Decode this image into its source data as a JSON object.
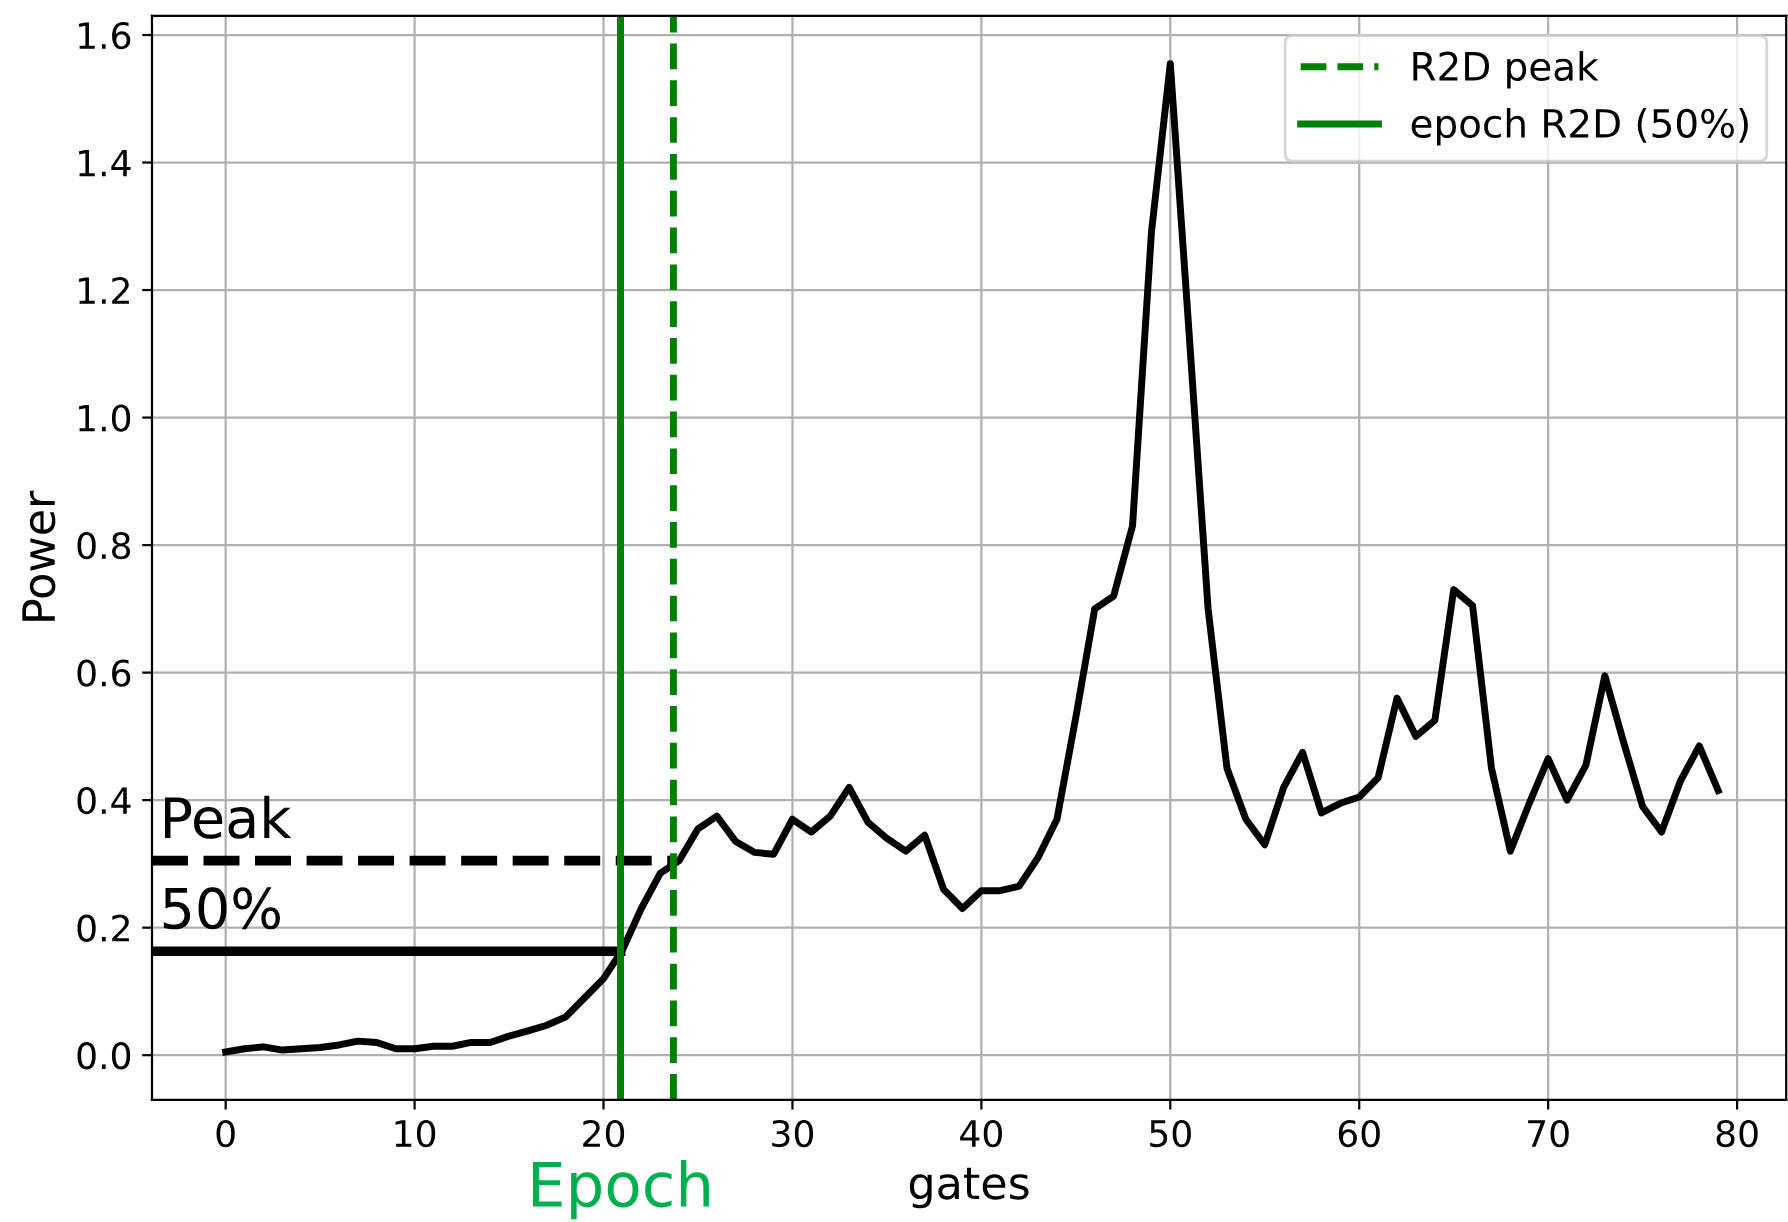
{
  "chart_data": {
    "type": "line",
    "xlabel": "gates",
    "ylabel": "Power",
    "xlim": [
      -3.9,
      82.6
    ],
    "ylim": [
      -0.07,
      1.63
    ],
    "xticks": [
      0,
      10,
      20,
      30,
      40,
      50,
      60,
      70,
      80
    ],
    "yticks": [
      {
        "value": 0,
        "label": "0.0"
      },
      {
        "value": 0.2,
        "label": "0.2"
      },
      {
        "value": 0.4,
        "label": "0.4"
      },
      {
        "value": 0.6,
        "label": "0.6"
      },
      {
        "value": 0.8,
        "label": "0.8"
      },
      {
        "value": 1.0,
        "label": "1.0"
      },
      {
        "value": 1.2,
        "label": "1.2"
      },
      {
        "value": 1.4,
        "label": "1.4"
      },
      {
        "value": 1.6,
        "label": "1.6"
      }
    ],
    "grid": true,
    "legend": "top right",
    "x": [
      0,
      1,
      2,
      3,
      4,
      5,
      6,
      7,
      8,
      9,
      10,
      11,
      12,
      13,
      14,
      15,
      16,
      17,
      18,
      19,
      20,
      21,
      22,
      23,
      24,
      25,
      26,
      27,
      28,
      29,
      30,
      31,
      32,
      33,
      34,
      35,
      36,
      37,
      38,
      39,
      40,
      41,
      42,
      43,
      44,
      45,
      46,
      47,
      48,
      49,
      50,
      51,
      52,
      53,
      54,
      55,
      56,
      57,
      58,
      59,
      60,
      61,
      62,
      63,
      64,
      65,
      66,
      67,
      68,
      69,
      70,
      71,
      72,
      73,
      74,
      75,
      76,
      77,
      78,
      79
    ],
    "series": [
      {
        "color": "#000000",
        "line_style": "solid",
        "values": [
          0.005,
          0.01,
          0.013,
          0.008,
          0.01,
          0.012,
          0.016,
          0.022,
          0.02,
          0.01,
          0.01,
          0.014,
          0.014,
          0.02,
          0.02,
          0.03,
          0.038,
          0.047,
          0.06,
          0.09,
          0.12,
          0.165,
          0.23,
          0.285,
          0.305,
          0.355,
          0.375,
          0.335,
          0.318,
          0.315,
          0.37,
          0.35,
          0.375,
          0.42,
          0.365,
          0.34,
          0.32,
          0.345,
          0.26,
          0.23,
          0.258,
          0.258,
          0.265,
          0.31,
          0.37,
          0.53,
          0.7,
          0.72,
          0.83,
          1.29,
          1.555,
          1.13,
          0.7,
          0.45,
          0.37,
          0.33,
          0.42,
          0.475,
          0.38,
          0.395,
          0.405,
          0.435,
          0.56,
          0.5,
          0.525,
          0.73,
          0.705,
          0.45,
          0.32,
          0.395,
          0.465,
          0.4,
          0.455,
          0.595,
          0.49,
          0.39,
          0.35,
          0.43,
          0.485,
          0.415
        ]
      },
      {
        "color": "#000000",
        "line_style": "dashed",
        "x": [
          -3.9,
          23.7
        ],
        "values": [
          0.305,
          0.305
        ]
      },
      {
        "color": "#000000",
        "line_style": "solid",
        "x": [
          -3.9,
          20.9
        ],
        "values": [
          0.163,
          0.163
        ]
      },
      {
        "name": "R2D peak",
        "color": "#008000",
        "line_style": "dashed",
        "x": [
          23.7,
          23.7
        ],
        "values": [
          -0.07,
          1.63
        ]
      },
      {
        "name": "epoch R2D (50%)",
        "color": "#008000",
        "line_style": "solid",
        "x": [
          20.9,
          20.9
        ],
        "values": [
          -0.07,
          1.63
        ]
      }
    ],
    "annotations": [
      "Epoch",
      {
        "text": "Peak",
        "x": -3.5,
        "y": 0.305
      },
      {
        "text": "50%",
        "x": -3.5,
        "y": 0.163
      }
    ]
  }
}
